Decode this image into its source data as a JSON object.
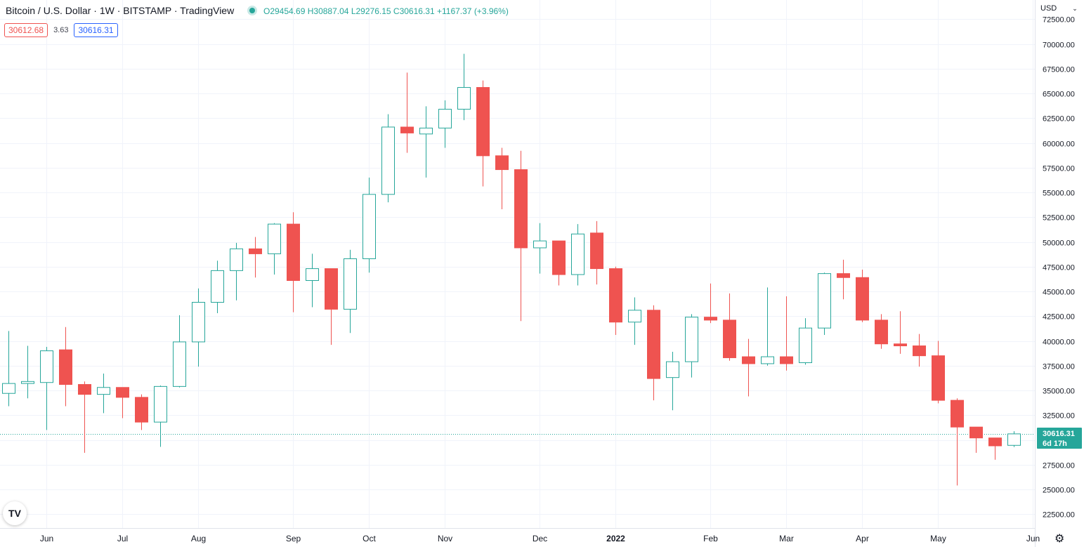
{
  "header": {
    "symbol": "Bitcoin / U.S. Dollar · 1W · BITSTAMP · TradingView",
    "open_label": "O",
    "open": "29454.69",
    "high_label": "H",
    "high": "30887.04",
    "low_label": "L",
    "low": "29276.15",
    "close_label": "C",
    "close": "30616.31",
    "change": "+1167.37 (+3.96%)"
  },
  "trade": {
    "sell": "30612.68",
    "spread": "3.63",
    "buy": "30616.31"
  },
  "currency": "USD",
  "last_price": {
    "value": "30616.31",
    "countdown": "6d 17h"
  },
  "logo_text": "TV",
  "colors": {
    "up": "#26a69a",
    "down": "#ef5350",
    "grid": "#f0f3fa",
    "axis": "#e0e3eb",
    "text": "#131722"
  },
  "icons": {
    "logo": "tradingview-logo-icon",
    "settings": "gear-icon",
    "currency_menu": "chevron-down-icon"
  },
  "chart_data": {
    "type": "candlestick",
    "interval": "1W",
    "y_ticks": [
      "22500.00",
      "25000.00",
      "27500.00",
      "30000.00",
      "32500.00",
      "35000.00",
      "37500.00",
      "40000.00",
      "42500.00",
      "45000.00",
      "47500.00",
      "50000.00",
      "52500.00",
      "55000.00",
      "57500.00",
      "60000.00",
      "62500.00",
      "65000.00",
      "67500.00",
      "70000.00",
      "72500.00"
    ],
    "x_labels": [
      {
        "label": "Jun",
        "index": 2
      },
      {
        "label": "Jul",
        "index": 6
      },
      {
        "label": "Aug",
        "index": 10
      },
      {
        "label": "Sep",
        "index": 15
      },
      {
        "label": "Oct",
        "index": 19
      },
      {
        "label": "Nov",
        "index": 23
      },
      {
        "label": "Dec",
        "index": 28
      },
      {
        "label": "2022",
        "index": 32,
        "bold": true
      },
      {
        "label": "Feb",
        "index": 37
      },
      {
        "label": "Mar",
        "index": 41
      },
      {
        "label": "Apr",
        "index": 45
      },
      {
        "label": "May",
        "index": 49
      },
      {
        "label": "Jun",
        "index": 54
      }
    ],
    "ylim": [
      21500,
      73000
    ],
    "last_price": 30616.31,
    "candles": [
      {
        "o": 34700,
        "h": 41000,
        "l": 33400,
        "c": 35700
      },
      {
        "o": 35700,
        "h": 39500,
        "l": 34200,
        "c": 35900
      },
      {
        "o": 35800,
        "h": 39400,
        "l": 31000,
        "c": 39000
      },
      {
        "o": 39100,
        "h": 41400,
        "l": 33400,
        "c": 35600
      },
      {
        "o": 35600,
        "h": 35900,
        "l": 28700,
        "c": 34600
      },
      {
        "o": 34600,
        "h": 36700,
        "l": 32700,
        "c": 35300
      },
      {
        "o": 35300,
        "h": 35300,
        "l": 32200,
        "c": 34300
      },
      {
        "o": 34300,
        "h": 34600,
        "l": 31000,
        "c": 31800
      },
      {
        "o": 31800,
        "h": 35500,
        "l": 29300,
        "c": 35400
      },
      {
        "o": 35400,
        "h": 42600,
        "l": 35300,
        "c": 39900
      },
      {
        "o": 39900,
        "h": 45300,
        "l": 37400,
        "c": 43900
      },
      {
        "o": 43900,
        "h": 48100,
        "l": 42800,
        "c": 47100
      },
      {
        "o": 47100,
        "h": 49900,
        "l": 44100,
        "c": 49300
      },
      {
        "o": 49300,
        "h": 50500,
        "l": 46400,
        "c": 48800
      },
      {
        "o": 48800,
        "h": 51900,
        "l": 46700,
        "c": 51800
      },
      {
        "o": 51800,
        "h": 53000,
        "l": 42900,
        "c": 46100
      },
      {
        "o": 46100,
        "h": 48800,
        "l": 43400,
        "c": 47300
      },
      {
        "o": 47300,
        "h": 47300,
        "l": 39600,
        "c": 43200
      },
      {
        "o": 43200,
        "h": 49200,
        "l": 40800,
        "c": 48300
      },
      {
        "o": 48300,
        "h": 56500,
        "l": 46900,
        "c": 54800
      },
      {
        "o": 54800,
        "h": 62900,
        "l": 54000,
        "c": 61600
      },
      {
        "o": 61600,
        "h": 67100,
        "l": 59000,
        "c": 61000
      },
      {
        "o": 60900,
        "h": 63700,
        "l": 56500,
        "c": 61500
      },
      {
        "o": 61500,
        "h": 64300,
        "l": 59500,
        "c": 63400
      },
      {
        "o": 63400,
        "h": 69000,
        "l": 62300,
        "c": 65600
      },
      {
        "o": 65600,
        "h": 66300,
        "l": 55600,
        "c": 58700
      },
      {
        "o": 58700,
        "h": 59500,
        "l": 53300,
        "c": 57300
      },
      {
        "o": 57300,
        "h": 59200,
        "l": 42000,
        "c": 49400
      },
      {
        "o": 49400,
        "h": 51900,
        "l": 46800,
        "c": 50100
      },
      {
        "o": 50100,
        "h": 50100,
        "l": 45600,
        "c": 46700
      },
      {
        "o": 46700,
        "h": 51800,
        "l": 45600,
        "c": 50800
      },
      {
        "o": 50900,
        "h": 52100,
        "l": 45700,
        "c": 47300
      },
      {
        "o": 47300,
        "h": 47500,
        "l": 40600,
        "c": 41900
      },
      {
        "o": 41900,
        "h": 44400,
        "l": 39600,
        "c": 43100
      },
      {
        "o": 43100,
        "h": 43600,
        "l": 34000,
        "c": 36200
      },
      {
        "o": 36300,
        "h": 38900,
        "l": 33000,
        "c": 37900
      },
      {
        "o": 37900,
        "h": 42700,
        "l": 36300,
        "c": 42400
      },
      {
        "o": 42400,
        "h": 45800,
        "l": 41800,
        "c": 42100
      },
      {
        "o": 42100,
        "h": 44800,
        "l": 38000,
        "c": 38300
      },
      {
        "o": 38400,
        "h": 40200,
        "l": 34400,
        "c": 37700
      },
      {
        "o": 37700,
        "h": 45400,
        "l": 37500,
        "c": 38400
      },
      {
        "o": 38400,
        "h": 44500,
        "l": 37000,
        "c": 37700
      },
      {
        "o": 37800,
        "h": 42300,
        "l": 37600,
        "c": 41300
      },
      {
        "o": 41300,
        "h": 46900,
        "l": 40600,
        "c": 46800
      },
      {
        "o": 46800,
        "h": 48200,
        "l": 44200,
        "c": 46400
      },
      {
        "o": 46400,
        "h": 47200,
        "l": 41900,
        "c": 42100
      },
      {
        "o": 42100,
        "h": 42700,
        "l": 39200,
        "c": 39700
      },
      {
        "o": 39700,
        "h": 43000,
        "l": 38700,
        "c": 39500
      },
      {
        "o": 39500,
        "h": 40700,
        "l": 37400,
        "c": 38500
      },
      {
        "o": 38500,
        "h": 40000,
        "l": 33700,
        "c": 34000
      },
      {
        "o": 34000,
        "h": 34200,
        "l": 25400,
        "c": 31300
      },
      {
        "o": 31300,
        "h": 31300,
        "l": 28700,
        "c": 30200
      },
      {
        "o": 30200,
        "h": 30200,
        "l": 28000,
        "c": 29400
      },
      {
        "o": 29450,
        "h": 30880,
        "l": 29280,
        "c": 30610
      }
    ]
  }
}
